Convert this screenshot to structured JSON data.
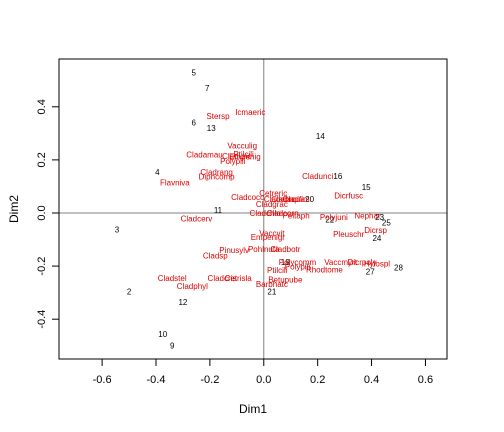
{
  "chart_data": {
    "type": "scatter",
    "xlabel": "Dim1",
    "ylabel": "Dim2",
    "xlim": [
      -0.76,
      0.68
    ],
    "ylim": [
      -0.55,
      0.58
    ],
    "x_ticks": [
      -0.6,
      -0.4,
      -0.2,
      0.0,
      0.2,
      0.4,
      0.6
    ],
    "x_tick_labels": [
      "-0.6",
      "-0.4",
      "-0.2",
      "0.0",
      "0.2",
      "0.4",
      "0.6"
    ],
    "y_ticks": [
      -0.4,
      -0.2,
      0.0,
      0.2,
      0.4
    ],
    "y_tick_labels": [
      "-0.4",
      "-0.2",
      "0.0",
      "0.2",
      "0.4"
    ],
    "reference_lines": {
      "x": 0,
      "y": 0
    },
    "colors": {
      "sites": "#000000",
      "species": "#e00000",
      "reference": "#808080"
    },
    "series": [
      {
        "color": "#000000",
        "points": [
          {
            "label": "5",
            "x": -0.26,
            "y": 0.53
          },
          {
            "label": "7",
            "x": -0.21,
            "y": 0.47
          },
          {
            "label": "6",
            "x": -0.26,
            "y": 0.34
          },
          {
            "label": "13",
            "x": -0.195,
            "y": 0.32
          },
          {
            "label": "14",
            "x": 0.21,
            "y": 0.29
          },
          {
            "label": "4",
            "x": -0.395,
            "y": 0.155
          },
          {
            "label": "16",
            "x": 0.275,
            "y": 0.14
          },
          {
            "label": "15",
            "x": 0.38,
            "y": 0.097
          },
          {
            "label": "20",
            "x": 0.17,
            "y": 0.052
          },
          {
            "label": "11",
            "x": -0.17,
            "y": 0.012
          },
          {
            "label": "22",
            "x": 0.245,
            "y": -0.025
          },
          {
            "label": "23",
            "x": 0.43,
            "y": -0.015
          },
          {
            "label": "25",
            "x": 0.455,
            "y": -0.035
          },
          {
            "label": "24",
            "x": 0.42,
            "y": -0.095
          },
          {
            "label": "3",
            "x": -0.545,
            "y": -0.063
          },
          {
            "label": "19",
            "x": 0.08,
            "y": -0.185
          },
          {
            "label": "28",
            "x": 0.5,
            "y": -0.205
          },
          {
            "label": "27",
            "x": 0.395,
            "y": -0.22
          },
          {
            "label": "21",
            "x": 0.03,
            "y": -0.295
          },
          {
            "label": "2",
            "x": -0.5,
            "y": -0.295
          },
          {
            "label": "12",
            "x": -0.3,
            "y": -0.335
          },
          {
            "label": "10",
            "x": -0.375,
            "y": -0.455
          },
          {
            "label": "9",
            "x": -0.34,
            "y": -0.5
          }
        ]
      },
      {
        "color": "#e00000",
        "points": [
          {
            "label": "Icmaeric",
            "x": -0.05,
            "y": 0.38
          },
          {
            "label": "Stersp",
            "x": -0.17,
            "y": 0.365
          },
          {
            "label": "Vacculig",
            "x": -0.08,
            "y": 0.255
          },
          {
            "label": "Cladamau",
            "x": -0.22,
            "y": 0.22
          },
          {
            "label": "Cladunc",
            "x": -0.1,
            "y": 0.215
          },
          {
            "label": "Ptilcili",
            "x": -0.075,
            "y": 0.222
          },
          {
            "label": "Empenig",
            "x": -0.07,
            "y": 0.212
          },
          {
            "label": "Polypili",
            "x": -0.115,
            "y": 0.195
          },
          {
            "label": "Cladrang",
            "x": -0.175,
            "y": 0.155
          },
          {
            "label": "Dipncomp",
            "x": -0.175,
            "y": 0.138
          },
          {
            "label": "Flavniva",
            "x": -0.33,
            "y": 0.115
          },
          {
            "label": "Cladunci",
            "x": 0.2,
            "y": 0.14
          },
          {
            "label": "Dicrfusc",
            "x": 0.315,
            "y": 0.065
          },
          {
            "label": "Cetreric",
            "x": 0.035,
            "y": 0.075
          },
          {
            "label": "Cladcocc",
            "x": -0.06,
            "y": 0.06
          },
          {
            "label": "Cladcorn",
            "x": 0.06,
            "y": 0.052
          },
          {
            "label": "Cladsqua",
            "x": 0.09,
            "y": 0.052
          },
          {
            "label": "Cladfim",
            "x": 0.12,
            "y": 0.052
          },
          {
            "label": "Cladgrac",
            "x": 0.03,
            "y": 0.033
          },
          {
            "label": "Cladchlo",
            "x": 0.005,
            "y": 0.0
          },
          {
            "label": "Cladcorn",
            "x": 0.07,
            "y": 0.0
          },
          {
            "label": "Peltaph",
            "x": 0.12,
            "y": -0.01
          },
          {
            "label": "Polyjuni",
            "x": 0.26,
            "y": -0.015
          },
          {
            "label": "Nephar",
            "x": 0.385,
            "y": -0.01
          },
          {
            "label": "Cladcerv",
            "x": -0.25,
            "y": -0.02
          },
          {
            "label": "Dicrsp",
            "x": 0.415,
            "y": -0.065
          },
          {
            "label": "Pleuschr",
            "x": 0.315,
            "y": -0.08
          },
          {
            "label": "Vaccvit",
            "x": 0.03,
            "y": -0.075
          },
          {
            "label": "Empenigr",
            "x": 0.015,
            "y": -0.09
          },
          {
            "label": "Pinusylv",
            "x": -0.11,
            "y": -0.14
          },
          {
            "label": "Pohlnuta",
            "x": 0.0,
            "y": -0.135
          },
          {
            "label": "Cladbotr",
            "x": 0.08,
            "y": -0.135
          },
          {
            "label": "Cladsp",
            "x": -0.18,
            "y": -0.16
          },
          {
            "label": "Polycomm",
            "x": 0.125,
            "y": -0.185
          },
          {
            "label": "Vaccmyrt",
            "x": 0.285,
            "y": -0.185
          },
          {
            "label": "Dicrpoly",
            "x": 0.365,
            "y": -0.185
          },
          {
            "label": "Hylospl",
            "x": 0.42,
            "y": -0.19
          },
          {
            "label": "Polypili",
            "x": 0.125,
            "y": -0.202
          },
          {
            "label": "Rhodtome",
            "x": 0.225,
            "y": -0.212
          },
          {
            "label": "Ptilcili",
            "x": 0.05,
            "y": -0.215
          },
          {
            "label": "Betupube",
            "x": 0.08,
            "y": -0.25
          },
          {
            "label": "Barbhatc",
            "x": 0.03,
            "y": -0.268
          },
          {
            "label": "Cladstel",
            "x": -0.34,
            "y": -0.245
          },
          {
            "label": "Cladcris",
            "x": -0.155,
            "y": -0.245
          },
          {
            "label": "Cetrisla",
            "x": -0.095,
            "y": -0.245
          },
          {
            "label": "Cladphyl",
            "x": -0.265,
            "y": -0.275
          }
        ]
      }
    ]
  }
}
